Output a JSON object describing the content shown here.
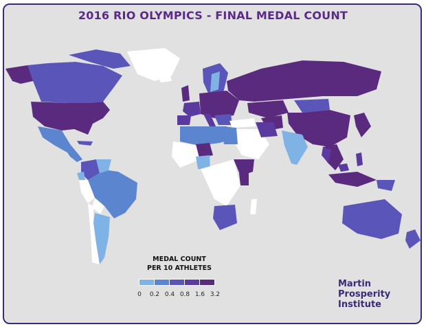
{
  "title": "2016 RIO OLYMPICS - FINAL MEDAL COUNT",
  "legend": {
    "title_line1": "MEDAL COUNT",
    "title_line2": "PER 10 ATHLETES",
    "ticks": [
      "0",
      "0.2",
      "0.4",
      "0.8",
      "1.6",
      "3.2"
    ],
    "colors": [
      "#7fb3e6",
      "#5b86cf",
      "#5a55b8",
      "#5a3a9e",
      "#5a2a7e"
    ]
  },
  "colors": {
    "background": "#e1e1e1",
    "border": "#3b2a78",
    "no_data": "#ffffff",
    "title": "#5b2a86"
  },
  "branding": {
    "line1": "Martin",
    "line2": "Prosperity",
    "line3": "Institute"
  }
}
